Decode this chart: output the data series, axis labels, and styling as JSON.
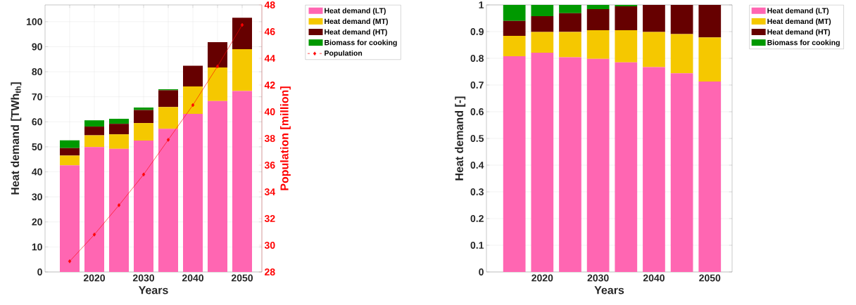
{
  "chart_data": [
    {
      "type": "bar",
      "stacked": true,
      "xlabel": "Years",
      "ylabel": "Heat demand [TWh$_{th}$]",
      "y2label": "Population [million]",
      "x": [
        2015,
        2020,
        2025,
        2030,
        2035,
        2040,
        2045,
        2050
      ],
      "series": [
        {
          "name": "Heat demand (LT)",
          "color": "#ff66b2",
          "values": [
            42.6,
            49.9,
            49.2,
            52.5,
            57.2,
            63.2,
            68.3,
            72.3
          ]
        },
        {
          "name": "Heat demand (MT)",
          "color": "#f5c800",
          "values": [
            3.9,
            4.7,
            5.8,
            7.0,
            8.7,
            10.9,
            13.4,
            16.7
          ]
        },
        {
          "name": "Heat demand (HT)",
          "color": "#660000",
          "values": [
            3.0,
            3.5,
            4.2,
            5.2,
            6.7,
            8.3,
            10.1,
            12.6
          ]
        },
        {
          "name": "Biomass for cooking",
          "color": "#009900",
          "values": [
            3.1,
            2.5,
            2.0,
            1.0,
            0.4,
            0,
            0,
            0
          ]
        },
        {
          "name": "Population",
          "type": "line",
          "axis": "y2",
          "marker": "diamond",
          "line_style": "solid",
          "color": "#ff0000",
          "values": [
            28.8,
            30.8,
            33.0,
            35.3,
            37.9,
            40.5,
            43.4,
            46.5
          ]
        }
      ],
      "xlim": [
        2010,
        2054
      ],
      "xticks": [
        {
          "value": 2015,
          "label": null
        },
        2020,
        {
          "value": 2025,
          "label": null
        },
        2030,
        {
          "value": 2035,
          "label": null
        },
        2040,
        {
          "value": 2045,
          "label": null
        },
        2050
      ],
      "ylim": [
        0,
        106.7
      ],
      "yticks": [
        0,
        10,
        20,
        30,
        40,
        50,
        60,
        70,
        80,
        90,
        100
      ],
      "y2lim": [
        28,
        48
      ],
      "y2ticks": [
        28,
        30,
        32,
        34,
        36,
        38,
        40,
        42,
        44,
        46,
        48
      ],
      "grid": true,
      "legend": "top right"
    },
    {
      "type": "bar",
      "stacked": true,
      "xlabel": "Years",
      "ylabel": "Heat demand [-]",
      "x": [
        2015,
        2020,
        2025,
        2030,
        2035,
        2040,
        2045,
        2050
      ],
      "series": [
        {
          "name": "Heat demand (LT)",
          "color": "#ff66b2",
          "values": [
            0.808,
            0.821,
            0.804,
            0.798,
            0.785,
            0.767,
            0.744,
            0.713
          ]
        },
        {
          "name": "Heat demand (MT)",
          "color": "#f5c800",
          "values": [
            0.076,
            0.078,
            0.095,
            0.107,
            0.12,
            0.132,
            0.147,
            0.165
          ]
        },
        {
          "name": "Heat demand (HT)",
          "color": "#660000",
          "values": [
            0.056,
            0.059,
            0.07,
            0.079,
            0.09,
            0.101,
            0.109,
            0.122
          ]
        },
        {
          "name": "Biomass for cooking",
          "color": "#009900",
          "values": [
            0.06,
            0.042,
            0.031,
            0.016,
            0.005,
            0,
            0,
            0
          ]
        }
      ],
      "xlim": [
        2010,
        2054
      ],
      "xticks": [
        {
          "value": 2015,
          "label": null
        },
        2020,
        {
          "value": 2025,
          "label": null
        },
        2030,
        {
          "value": 2035,
          "label": null
        },
        2040,
        {
          "value": 2045,
          "label": null
        },
        2050
      ],
      "ylim": [
        0,
        1
      ],
      "yticks": [
        0,
        0.1,
        0.2,
        0.3,
        0.4,
        0.5,
        0.6,
        0.7,
        0.8,
        0.9,
        1
      ],
      "grid": true,
      "legend": "top right"
    }
  ]
}
